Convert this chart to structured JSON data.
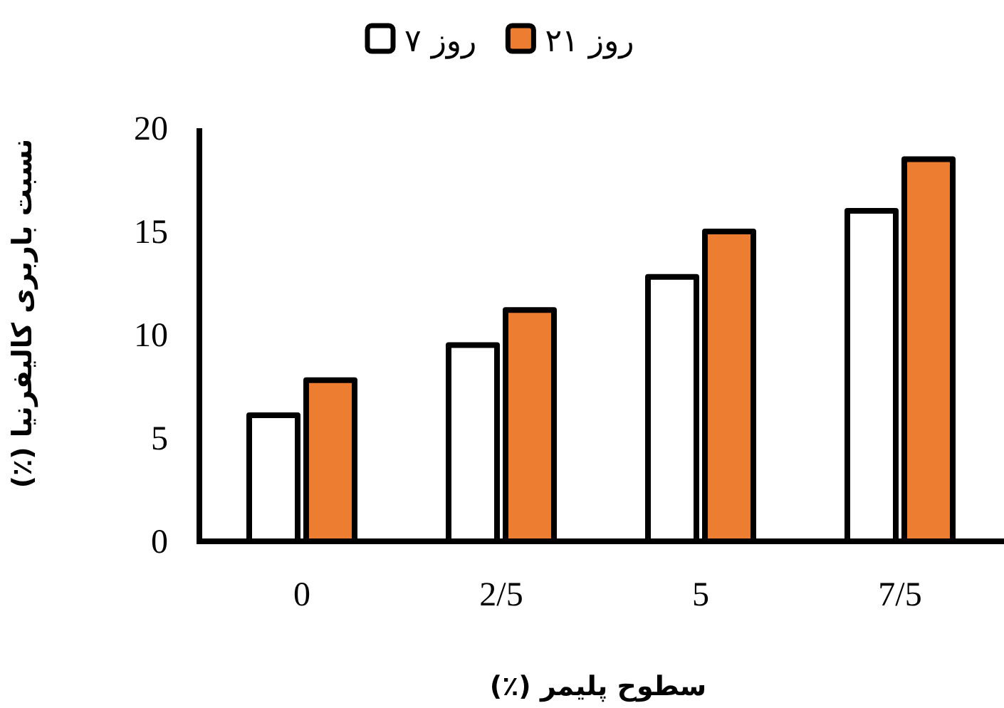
{
  "chart_data": {
    "type": "bar",
    "xlabel": "سطوح پلیمر (٪)",
    "ylabel": "نسبت باربری کالیفرنیا (٪)",
    "categories": [
      "0",
      "2/5",
      "5",
      "7/5"
    ],
    "series": [
      {
        "name": "۷ روز",
        "color": "#ffffff",
        "values": [
          6.1,
          9.5,
          12.8,
          16.0
        ]
      },
      {
        "name": "۲۱ روز",
        "color": "#ed7d31",
        "values": [
          7.8,
          11.2,
          15.0,
          18.5
        ]
      }
    ],
    "ylim": [
      0,
      20
    ],
    "yticks": [
      0,
      5,
      10,
      15,
      20
    ],
    "grid": false,
    "legend": "top"
  }
}
